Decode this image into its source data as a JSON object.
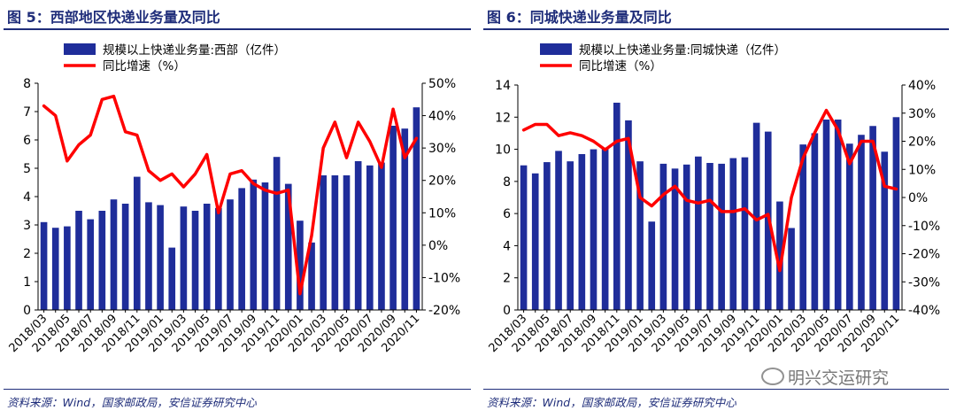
{
  "source_note": "资料来源：Wind，国家邮政局，安信证券研究中心",
  "watermark": "明兴交运研究",
  "colors": {
    "bar": "#1f2d9a",
    "line": "#ff0000",
    "title": "#1f2d7a"
  },
  "chart_data": [
    {
      "type": "bar",
      "title": "图 5：西部地区快递业务量及同比",
      "categories": [
        "2018/03",
        "2018/04",
        "2018/05",
        "2018/06",
        "2018/07",
        "2018/08",
        "2018/09",
        "2018/10",
        "2018/11",
        "2018/12",
        "2019/01",
        "2019/02",
        "2019/03",
        "2019/04",
        "2019/05",
        "2019/06",
        "2019/07",
        "2019/08",
        "2019/09",
        "2019/10",
        "2019/11",
        "2019/12",
        "2020/01",
        "2020/02",
        "2020/03",
        "2020/04",
        "2020/05",
        "2020/06",
        "2020/07",
        "2020/08",
        "2020/09",
        "2020/10",
        "2020/11"
      ],
      "x_tick_labels": [
        "2018/03",
        "2018/05",
        "2018/07",
        "2018/09",
        "2018/11",
        "2019/01",
        "2019/03",
        "2019/05",
        "2019/07",
        "2019/09",
        "2019/11",
        "2020/01",
        "2020/03",
        "2020/05",
        "2020/07",
        "2020/09",
        "2020/11"
      ],
      "series": [
        {
          "name": "规模以上快递业务量:西部（亿件）",
          "kind": "bar",
          "axis": "left",
          "values": [
            3.1,
            2.9,
            2.95,
            3.5,
            3.2,
            3.5,
            3.9,
            3.75,
            4.7,
            3.8,
            3.7,
            2.2,
            3.65,
            3.5,
            3.75,
            3.6,
            3.9,
            4.3,
            4.6,
            4.5,
            5.4,
            4.45,
            3.15,
            2.38,
            4.75,
            4.75,
            4.75,
            5.25,
            5.1,
            5.2,
            6.5,
            6.4,
            7.15
          ]
        },
        {
          "name": "同比增速（%）",
          "kind": "line",
          "axis": "right",
          "values": [
            43,
            40,
            26,
            31,
            34,
            45,
            46,
            35,
            34,
            23,
            20,
            22,
            18,
            22,
            28,
            10,
            22,
            23,
            19,
            17,
            16,
            17,
            -15,
            3,
            30,
            38,
            27,
            38,
            32,
            24,
            42,
            27,
            33
          ]
        }
      ],
      "y_left": {
        "min": 0,
        "max": 8,
        "ticks": [
          "0",
          "1",
          "2",
          "3",
          "4",
          "5",
          "6",
          "7",
          "8"
        ]
      },
      "y_right": {
        "min": -20,
        "max": 50,
        "ticks": [
          "-20%",
          "-10%",
          "0%",
          "10%",
          "20%",
          "30%",
          "40%",
          "50%"
        ]
      },
      "legend": "top"
    },
    {
      "type": "bar",
      "title": "图 6：同城快递业务量及同比",
      "categories": [
        "2018/03",
        "2018/04",
        "2018/05",
        "2018/06",
        "2018/07",
        "2018/08",
        "2018/09",
        "2018/10",
        "2018/11",
        "2018/12",
        "2019/01",
        "2019/02",
        "2019/03",
        "2019/04",
        "2019/05",
        "2019/06",
        "2019/07",
        "2019/08",
        "2019/09",
        "2019/10",
        "2019/11",
        "2019/12",
        "2020/01",
        "2020/02",
        "2020/03",
        "2020/04",
        "2020/05",
        "2020/06",
        "2020/07",
        "2020/08",
        "2020/09",
        "2020/10",
        "2020/11"
      ],
      "x_tick_labels": [
        "2018/03",
        "2018/05",
        "2018/07",
        "2018/09",
        "2018/11",
        "2019/01",
        "2019/03",
        "2019/05",
        "2019/07",
        "2019/09",
        "2019/11",
        "2020/01",
        "2020/03",
        "2020/05",
        "2020/07",
        "2020/09",
        "2020/11"
      ],
      "series": [
        {
          "name": "规模以上快递业务量:同城快递（亿件）",
          "kind": "bar",
          "axis": "left",
          "values": [
            9.0,
            8.5,
            9.2,
            9.9,
            9.25,
            9.7,
            10.0,
            10.1,
            12.9,
            11.8,
            9.25,
            5.5,
            9.1,
            8.8,
            9.05,
            9.55,
            9.15,
            9.1,
            9.45,
            9.5,
            11.65,
            11.1,
            6.75,
            5.1,
            10.3,
            11.0,
            11.85,
            11.85,
            10.35,
            10.9,
            11.45,
            9.85,
            12.0
          ]
        },
        {
          "name": "同比增速（%）",
          "kind": "line",
          "axis": "right",
          "values": [
            24,
            26,
            26,
            22,
            23,
            22,
            20,
            17,
            20,
            21,
            0,
            -3,
            1,
            4,
            -1,
            -2,
            -1,
            -5,
            -5,
            -4,
            -8,
            -6,
            -26,
            0,
            14,
            23,
            31,
            24,
            12,
            20,
            20,
            4,
            3
          ]
        }
      ],
      "y_left": {
        "min": 0,
        "max": 14,
        "ticks": [
          "0",
          "2",
          "4",
          "6",
          "8",
          "10",
          "12",
          "14"
        ]
      },
      "y_right": {
        "min": -40,
        "max": 40,
        "ticks": [
          "-40%",
          "-30%",
          "-20%",
          "-10%",
          "0%",
          "10%",
          "20%",
          "30%",
          "40%"
        ]
      },
      "legend": "top"
    }
  ]
}
